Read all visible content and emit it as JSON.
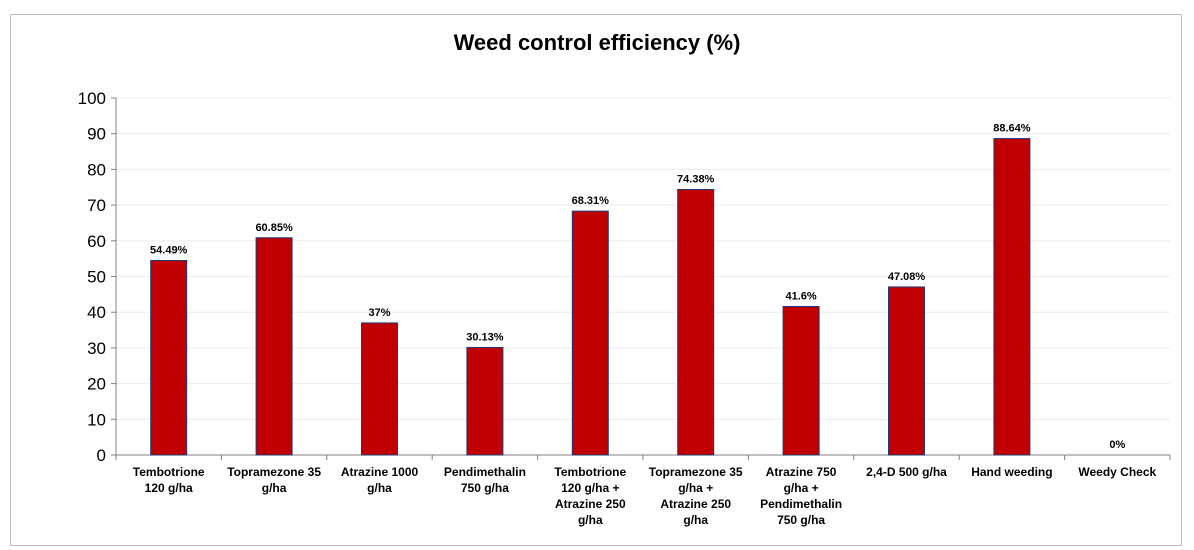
{
  "chart_data": {
    "type": "bar",
    "title": "Weed control efficiency (%)",
    "xlabel": "",
    "ylabel": "",
    "ylim": [
      0,
      100
    ],
    "yticks": [
      0,
      10,
      20,
      30,
      40,
      50,
      60,
      70,
      80,
      90,
      100
    ],
    "grid": true,
    "legend": "none",
    "categories": [
      "Tembotrione 120 g/ha",
      "Topramezone 35 g/ha",
      "Atrazine 1000 g/ha",
      "Pendimethalin 750 g/ha",
      "Tembotrione 120 g/ha + Atrazine 250 g/ha",
      "Topramezone 35 g/ha + Atrazine 250 g/ha",
      "Atrazine 750 g/ha + Pendimethalin 750 g/ha",
      "2,4-D 500 g/ha",
      "Hand weeding",
      "Weedy Check"
    ],
    "values": [
      54.49,
      60.85,
      37,
      30.13,
      68.31,
      74.38,
      41.6,
      47.08,
      88.64,
      0
    ],
    "data_labels": [
      "54.49%",
      "60.85%",
      "37%",
      "30.13%",
      "68.31%",
      "74.38%",
      "41.6%",
      "47.08%",
      "88.64%",
      "0%"
    ],
    "bar_color": "#c00000",
    "bar_edge_color": "#1f3a7a"
  }
}
